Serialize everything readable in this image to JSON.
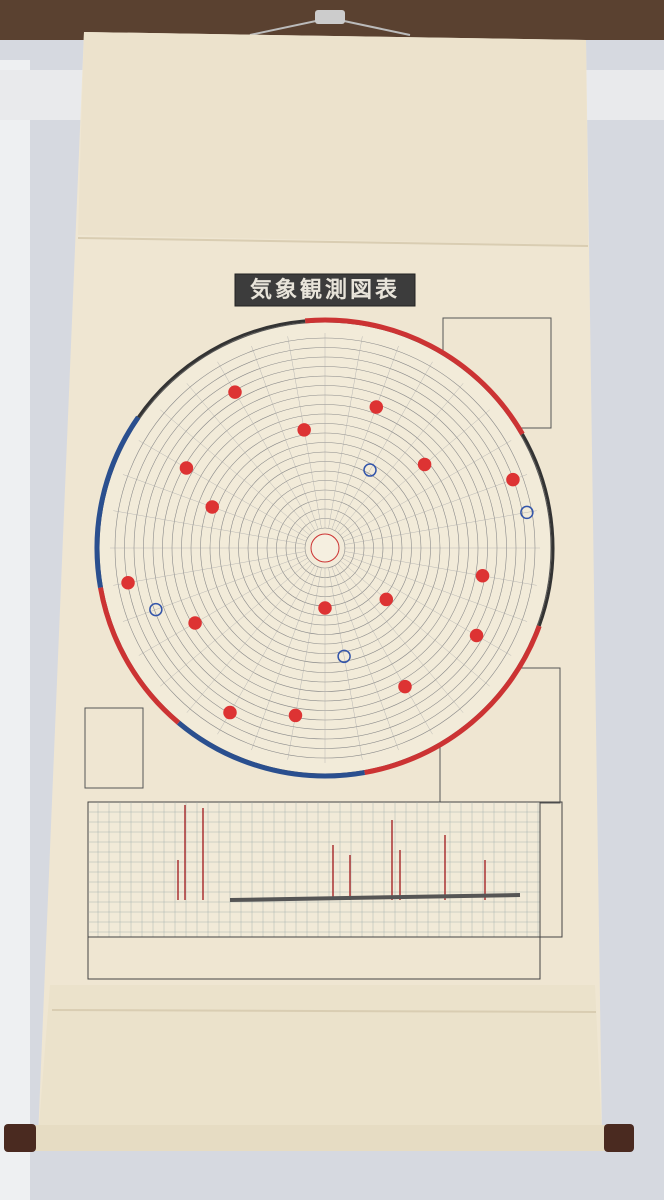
{
  "poster": {
    "title": "気象観測図表"
  }
}
